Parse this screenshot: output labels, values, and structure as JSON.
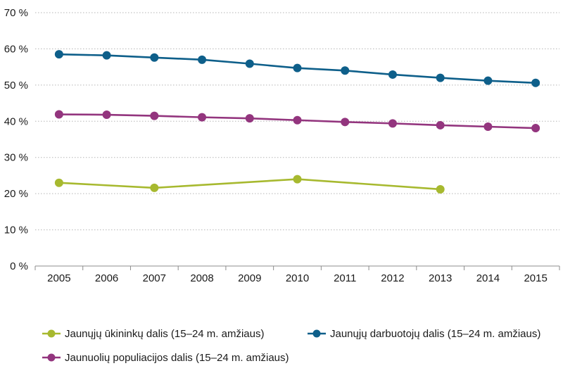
{
  "chart_data": {
    "type": "line",
    "title": "",
    "xlabel": "",
    "ylabel": "",
    "x": [
      "2005",
      "2006",
      "2007",
      "2008",
      "2009",
      "2010",
      "2011",
      "2012",
      "2013",
      "2014",
      "2015"
    ],
    "ylim": [
      0,
      70
    ],
    "yticks": [
      0,
      10,
      20,
      30,
      40,
      50,
      60,
      70
    ],
    "ytick_labels": [
      "0 %",
      "10 %",
      "20 %",
      "30 %",
      "40 %",
      "50 %",
      "60 %",
      "70 %"
    ],
    "grid": "horizontal dotted",
    "legend_position": "bottom",
    "series": [
      {
        "name": "Jaunųjų ūkininkų dalis (15–24 m. amžiaus)",
        "color": "#a7b92f",
        "points": [
          {
            "x": "2005",
            "y": 23.0
          },
          {
            "x": "2007",
            "y": 21.6
          },
          {
            "x": "2010",
            "y": 24.0
          },
          {
            "x": "2013",
            "y": 21.2
          }
        ]
      },
      {
        "name": "Jaunųjų darbuotojų dalis (15–24 m. amžiaus)",
        "color": "#0e5f8a",
        "points": [
          {
            "x": "2005",
            "y": 58.5
          },
          {
            "x": "2006",
            "y": 58.2
          },
          {
            "x": "2007",
            "y": 57.6
          },
          {
            "x": "2008",
            "y": 57.0
          },
          {
            "x": "2009",
            "y": 55.9
          },
          {
            "x": "2010",
            "y": 54.7
          },
          {
            "x": "2011",
            "y": 54.0
          },
          {
            "x": "2012",
            "y": 52.9
          },
          {
            "x": "2013",
            "y": 52.0
          },
          {
            "x": "2014",
            "y": 51.2
          },
          {
            "x": "2015",
            "y": 50.6
          }
        ]
      },
      {
        "name": "Jaunuolių populiacijos dalis (15–24 m. amžiaus)",
        "color": "#93357e",
        "points": [
          {
            "x": "2005",
            "y": 41.9
          },
          {
            "x": "2006",
            "y": 41.8
          },
          {
            "x": "2007",
            "y": 41.5
          },
          {
            "x": "2008",
            "y": 41.1
          },
          {
            "x": "2009",
            "y": 40.8
          },
          {
            "x": "2010",
            "y": 40.3
          },
          {
            "x": "2011",
            "y": 39.8
          },
          {
            "x": "2012",
            "y": 39.4
          },
          {
            "x": "2013",
            "y": 38.9
          },
          {
            "x": "2014",
            "y": 38.5
          },
          {
            "x": "2015",
            "y": 38.1
          }
        ]
      }
    ],
    "legend_order": [
      0,
      1,
      2
    ]
  }
}
